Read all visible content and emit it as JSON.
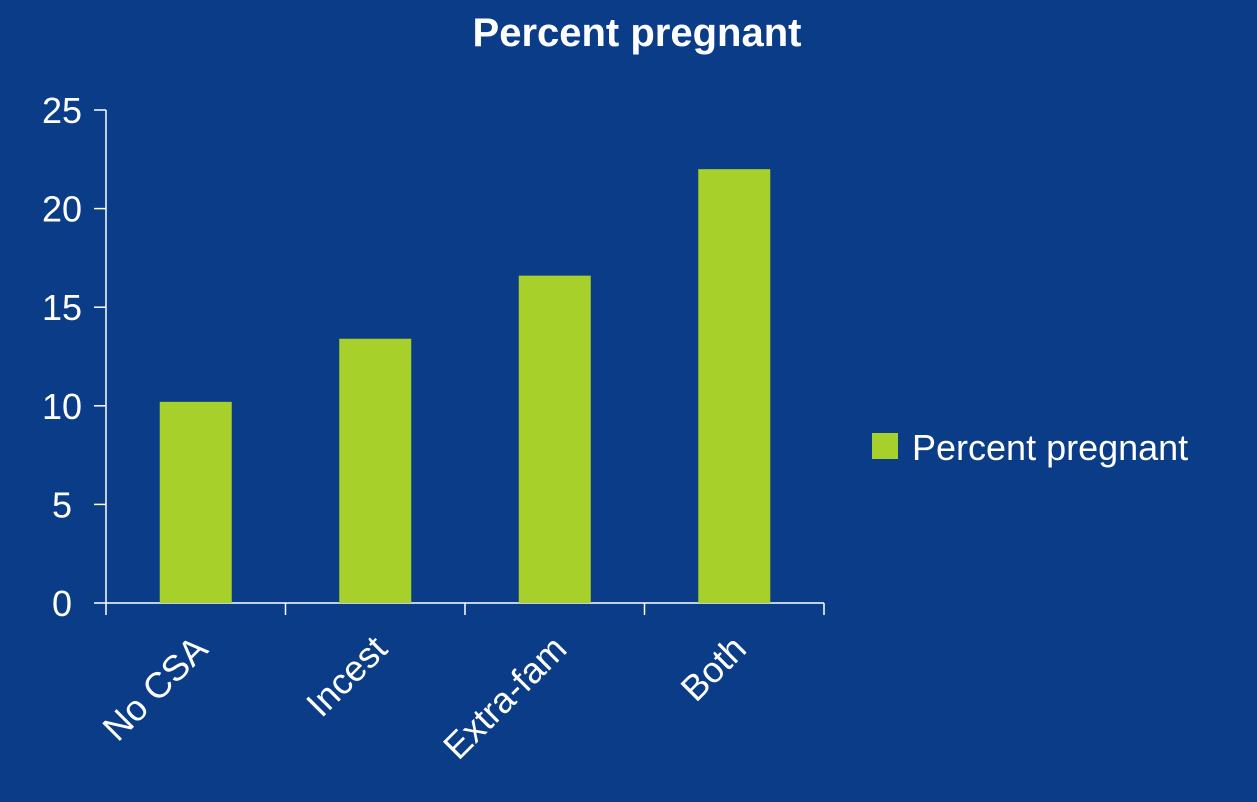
{
  "colors": {
    "background": "#0B3C88",
    "bar": "#A8D02A",
    "axis": "#FFFFFF",
    "text": "#FFFFFF"
  },
  "chart_data": {
    "type": "bar",
    "title": "Percent pregnant",
    "categories": [
      "No CSA",
      "Incest",
      "Extra-fam",
      "Both"
    ],
    "series": [
      {
        "name": "Percent pregnant",
        "values": [
          10.2,
          13.4,
          16.6,
          22.0
        ]
      }
    ],
    "ylim": [
      0,
      25
    ],
    "yticks": [
      "0",
      "5",
      "10",
      "15",
      "20",
      "25"
    ],
    "legend": {
      "position": "right"
    },
    "grid": false
  }
}
